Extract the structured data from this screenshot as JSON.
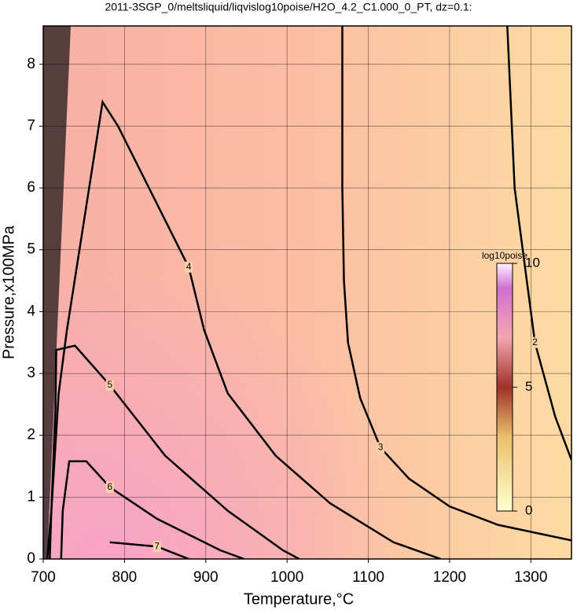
{
  "chart_data": {
    "type": "contour",
    "title": "2011-3SGP_0/meltsliquid/liqvislog10poise/H2O_4.2_C1.000_0_PT, dz=0.1:",
    "x_label": "Temperature,°C",
    "y_label": "Pressure,x100MPa",
    "xlim": [
      700,
      1350
    ],
    "ylim": [
      0,
      8.62
    ],
    "xticks": [
      700,
      800,
      900,
      1000,
      1100,
      1200,
      1300
    ],
    "yticks": [
      0,
      1,
      2,
      3,
      4,
      5,
      6,
      7,
      8
    ],
    "grid": true,
    "colorbar": {
      "label": "log10poise",
      "clim": [
        0,
        10
      ],
      "ticks": [
        0,
        5,
        10
      ]
    },
    "contours": [
      {
        "level": 2,
        "x": [
          1271,
          1280,
          1295,
          1305,
          1330,
          1350
        ],
        "y": [
          8.62,
          6,
          4.5,
          3.5,
          2.3,
          1.6
        ]
      },
      {
        "level": 3,
        "x": [
          1068,
          1068,
          1070,
          1075,
          1090,
          1115,
          1150,
          1200,
          1260,
          1350
        ],
        "y": [
          8.62,
          6,
          4.5,
          3.5,
          2.6,
          1.8,
          1.3,
          0.85,
          0.55,
          0.3
        ]
      },
      {
        "level": 4,
        "x": [
          705,
          710,
          719,
          729,
          773,
          792,
          869,
          879,
          898,
          927,
          986,
          1053,
          1131,
          1189
        ],
        "y": [
          0,
          0.78,
          2.68,
          3.69,
          7.39,
          7.0,
          4.98,
          4.72,
          3.7,
          2.68,
          1.67,
          0.9,
          0.27,
          0
        ]
      },
      {
        "level": 5,
        "x": [
          708,
          710,
          715,
          716,
          739,
          782,
          850,
          927,
          995,
          1015
        ],
        "y": [
          0,
          0.78,
          2.43,
          3.38,
          3.45,
          2.81,
          1.67,
          0.78,
          0.14,
          0
        ]
      },
      {
        "level": 6,
        "x": [
          722,
          724,
          732,
          753,
          782,
          840,
          918,
          947
        ],
        "y": [
          0,
          0.78,
          1.58,
          1.58,
          1.16,
          0.65,
          0.14,
          0
        ]
      },
      {
        "level": 7,
        "x": [
          782,
          840,
          879
        ],
        "y": [
          0.27,
          0.2,
          0
        ]
      }
    ]
  }
}
